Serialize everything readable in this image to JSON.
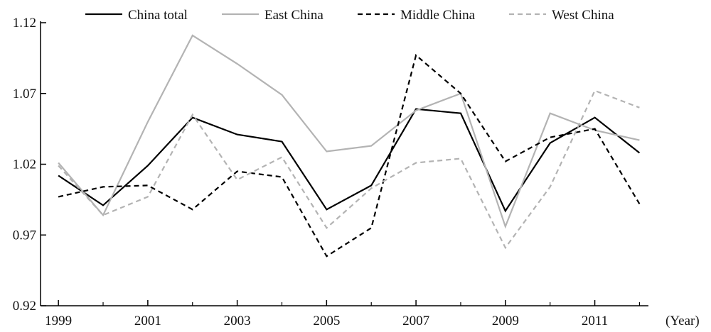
{
  "chart_data": {
    "type": "line",
    "title": "",
    "xlabel": "(Year)",
    "ylabel": "",
    "x": [
      1999,
      2000,
      2001,
      2002,
      2003,
      2004,
      2005,
      2006,
      2007,
      2008,
      2009,
      2010,
      2011,
      2012
    ],
    "x_tick_labels": [
      "1999",
      "2001",
      "2003",
      "2005",
      "2007",
      "2009",
      "2011"
    ],
    "x_tick_values": [
      1999,
      2001,
      2003,
      2005,
      2007,
      2009,
      2011
    ],
    "y_tick_labels": [
      "0.92",
      "0.97",
      "1.02",
      "1.07",
      "1.12"
    ],
    "y_tick_values": [
      0.92,
      0.97,
      1.02,
      1.07,
      1.12
    ],
    "ylim": [
      0.92,
      1.12
    ],
    "xlim": [
      1998.6,
      2012.2
    ],
    "grid": false,
    "legend_position": "top",
    "series": [
      {
        "name": "China total",
        "color": "#000000",
        "dash": "solid",
        "values": [
          1.012,
          0.991,
          1.019,
          1.053,
          1.041,
          1.036,
          0.988,
          1.005,
          1.059,
          1.056,
          0.987,
          1.035,
          1.053,
          1.028
        ]
      },
      {
        "name": "East China",
        "color": "#b3b3b3",
        "dash": "solid",
        "values": [
          1.021,
          0.984,
          1.05,
          1.111,
          1.091,
          1.069,
          1.029,
          1.033,
          1.058,
          1.07,
          0.976,
          1.056,
          1.044,
          1.037
        ]
      },
      {
        "name": "Middle China",
        "color": "#000000",
        "dash": "dashed",
        "values": [
          0.997,
          1.004,
          1.005,
          0.988,
          1.015,
          1.011,
          0.955,
          0.975,
          1.097,
          1.07,
          1.022,
          1.039,
          1.045,
          0.992
        ]
      },
      {
        "name": "West China",
        "color": "#b3b3b3",
        "dash": "dashed",
        "values": [
          1.019,
          0.984,
          0.997,
          1.055,
          1.009,
          1.025,
          0.975,
          1.003,
          1.021,
          1.024,
          0.961,
          1.004,
          1.072,
          1.06
        ]
      }
    ]
  }
}
